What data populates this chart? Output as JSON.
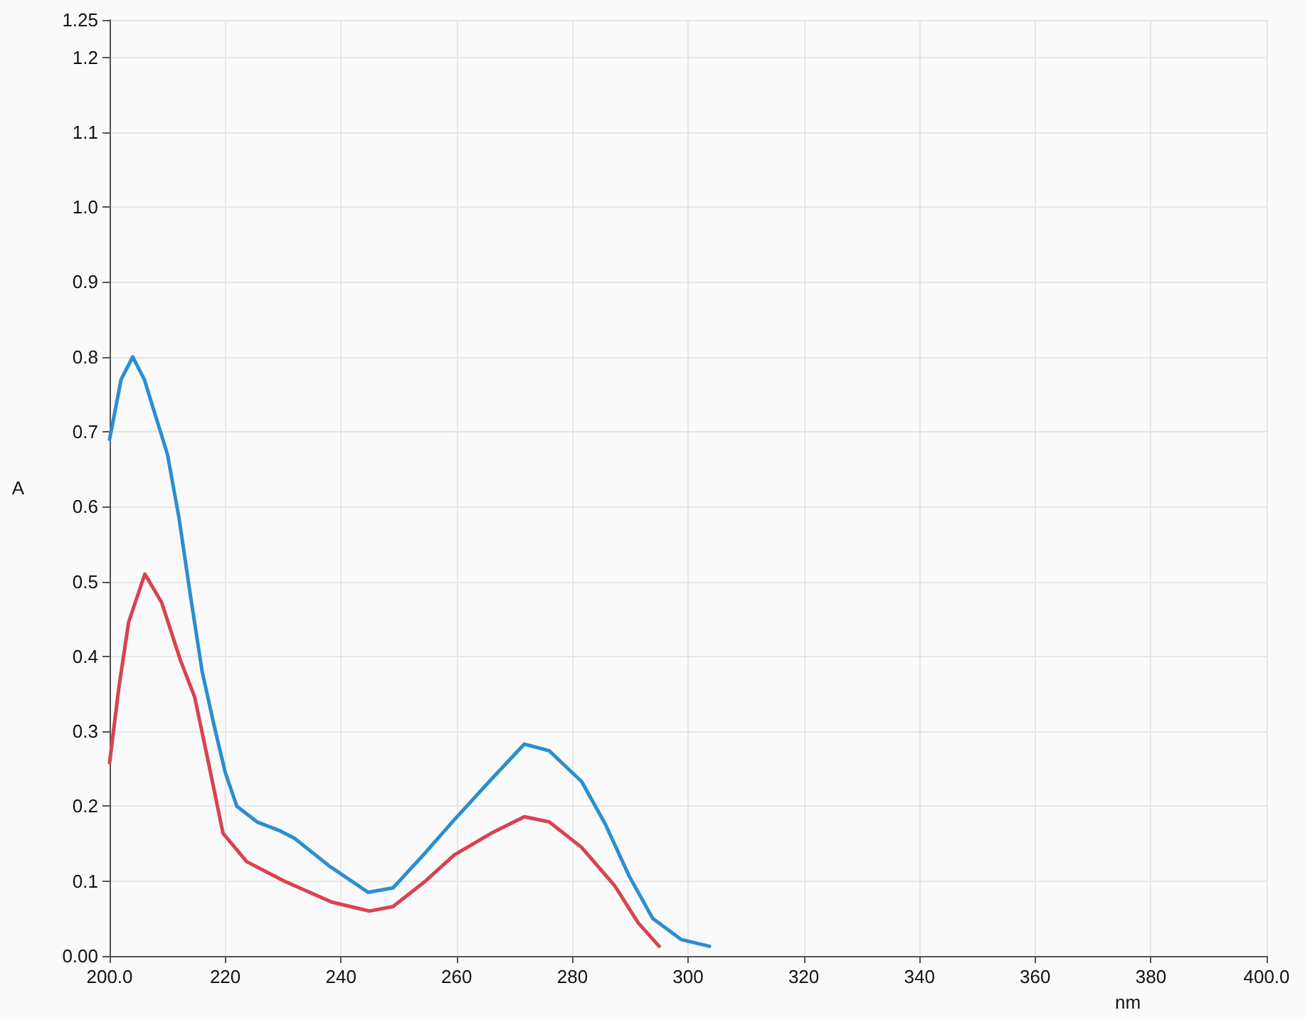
{
  "chart_data": {
    "type": "line",
    "xlabel": "nm",
    "ylabel": "A",
    "series": [
      {
        "color": "#2a8fd0",
        "x": [
          200,
          202,
          204,
          206,
          208,
          210,
          212,
          214,
          216,
          218,
          220,
          222,
          225.5,
          229.5,
          232,
          238,
          244.7,
          249,
          254.6,
          259.6,
          266,
          271.7,
          276,
          281.6,
          285.7,
          289.8,
          293.9,
          298.8,
          303.7
        ],
        "values": [
          0.69,
          0.77,
          0.8,
          0.77,
          0.72,
          0.67,
          0.585,
          0.48,
          0.38,
          0.31,
          0.245,
          0.2,
          0.179,
          0.167,
          0.157,
          0.12,
          0.085,
          0.091,
          0.138,
          0.182,
          0.236,
          0.283,
          0.274,
          0.233,
          0.176,
          0.107,
          0.05,
          0.022,
          0.013
        ]
      },
      {
        "color": "#d9434e",
        "x": [
          200,
          201.6,
          203.3,
          206.1,
          209,
          212.2,
          214.7,
          217.1,
          219.6,
          223.7,
          230.2,
          238.4,
          244.9,
          249,
          254.6,
          259.6,
          266,
          271.7,
          276,
          281.6,
          287.3,
          291.4,
          295
        ],
        "values": [
          0.258,
          0.358,
          0.446,
          0.51,
          0.472,
          0.396,
          0.346,
          0.258,
          0.164,
          0.126,
          0.1,
          0.072,
          0.06,
          0.066,
          0.1,
          0.135,
          0.164,
          0.186,
          0.179,
          0.145,
          0.094,
          0.044,
          0.013
        ]
      }
    ],
    "xlim": [
      200,
      400
    ],
    "xticks": [
      {
        "value": 200,
        "label": "200.0"
      },
      220,
      240,
      260,
      280,
      300,
      320,
      340,
      360,
      380,
      {
        "value": 400,
        "label": "400.0"
      }
    ],
    "ylim": [
      0,
      1.25
    ],
    "yticks": [
      {
        "value": 0,
        "label": "0.00"
      },
      0.1,
      0.2,
      0.3,
      0.4,
      0.5,
      0.6,
      0.7,
      0.8,
      0.9,
      {
        "value": 1,
        "label": "1.0"
      },
      1.1,
      1.2,
      1.25
    ],
    "grid": true,
    "marker": "none",
    "line_style": "solid"
  }
}
